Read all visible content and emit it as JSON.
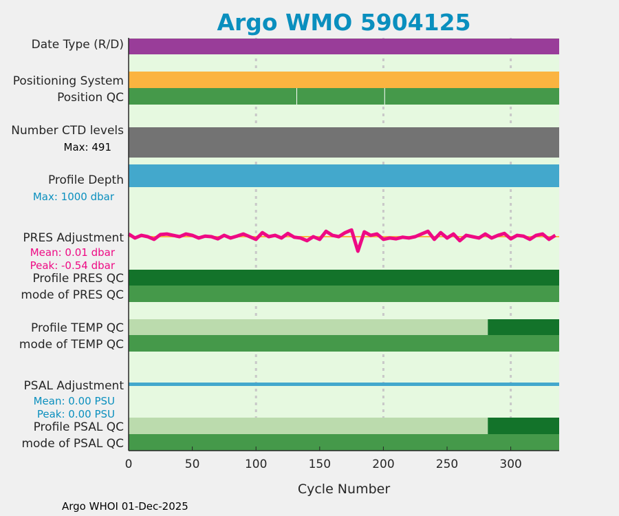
{
  "chart_data": {
    "type": "table",
    "title": "Argo WMO 5904125",
    "xlabel": "Cycle Number",
    "xlim": [
      0,
      338
    ],
    "xticks": [
      "0",
      "50",
      "100",
      "150",
      "200",
      "250",
      "300"
    ],
    "grid": "vertical dashed at 100, 200, 300",
    "footer": "Argo WHOI 01-Dec-2025",
    "rows": {
      "date_type": {
        "label": "Date Type (R/D)",
        "color": "#993d99"
      },
      "positioning": {
        "label": "Positioning System",
        "color": "#fbb440"
      },
      "position_qc": {
        "label": "Position QC",
        "color": "#45994a",
        "gaps_at_cycles": [
          132,
          201
        ]
      },
      "ctd_levels": {
        "label": "Number CTD levels",
        "max_label": "Max: 491",
        "color": "#737373"
      },
      "profile_depth": {
        "label": "Profile Depth",
        "max_label": "Max: 1000 dbar",
        "color": "#43a8cc"
      },
      "pres_adj": {
        "label": "PRES Adjustment",
        "mean_label": "Mean: 0.01 dbar",
        "peak_label": "Peak: -0.54 dbar",
        "color": "#ee0a84",
        "x_step": 5,
        "values": [
          0.1,
          -0.05,
          0.05,
          0.0,
          -0.1,
          0.08,
          0.1,
          0.05,
          0.0,
          0.1,
          0.05,
          -0.05,
          0.02,
          0.0,
          -0.08,
          0.05,
          -0.05,
          0.02,
          0.1,
          0.0,
          -0.1,
          0.15,
          0.0,
          0.05,
          -0.05,
          0.12,
          -0.02,
          -0.05,
          -0.15,
          0.0,
          -0.1,
          0.2,
          0.05,
          0.0,
          0.15,
          0.25,
          -0.54,
          0.18,
          0.05,
          0.1,
          -0.1,
          -0.05,
          -0.08,
          -0.02,
          -0.05,
          0.0,
          0.1,
          0.2,
          -0.1,
          0.15,
          -0.05,
          0.1,
          -0.15,
          0.05,
          0.0,
          -0.05,
          0.1,
          -0.05,
          0.05,
          0.12,
          -0.08,
          0.05,
          0.02,
          -0.1,
          0.05,
          0.1,
          -0.1,
          0.05
        ]
      },
      "pres_qc": {
        "label": "Profile PRES QC",
        "color": "#13732a"
      },
      "pres_mode": {
        "label": "mode of PRES QC",
        "color": "#45994a"
      },
      "temp_qc": {
        "label": "Profile TEMP QC",
        "segments": [
          {
            "from": 0,
            "to": 282,
            "color": "#bbdbad"
          },
          {
            "from": 282,
            "to": 338,
            "color": "#13732a"
          }
        ]
      },
      "temp_mode": {
        "label": "mode of TEMP QC",
        "color": "#45994a"
      },
      "psal_adj": {
        "label": "PSAL Adjustment",
        "mean_label": "Mean: 0.00 PSU",
        "peak_label": "Peak: 0.00 PSU",
        "color": "#43a8cc"
      },
      "psal_qc": {
        "label": "Profile PSAL QC",
        "segments": [
          {
            "from": 0,
            "to": 282,
            "color": "#bbdbad"
          },
          {
            "from": 282,
            "to": 338,
            "color": "#13732a"
          }
        ]
      },
      "psal_mode": {
        "label": "mode of PSAL QC",
        "color": "#45994a"
      }
    }
  }
}
